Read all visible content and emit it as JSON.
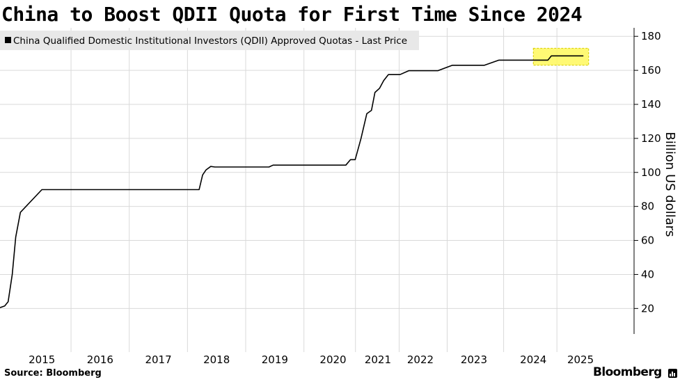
{
  "title": "China to Boost QDII Quota for First Time Since 2024",
  "source": "Source: Bloomberg",
  "brand": "Bloomberg",
  "colors": {
    "line": "#000000",
    "highlight_fill": "#fff85c",
    "highlight_border": "#d6cc00",
    "grid": "#d9d9d9",
    "legend_bg": "#e8e8e8"
  },
  "chart_data": {
    "type": "line",
    "legend": "China Qualified Domestic Institutional Investors (QDII) Approved Quotas - Last Price",
    "legend_position": "top-left",
    "ylabel": "Billion US dollars",
    "ylim": [
      5,
      185
    ],
    "yticks": [
      20,
      40,
      60,
      80,
      100,
      120,
      140,
      160,
      180
    ],
    "xlim": [
      2014.28,
      2025.17
    ],
    "xticks": [
      {
        "label": "2015",
        "x": 2015.0
      },
      {
        "label": "2016",
        "x": 2016.0
      },
      {
        "label": "2017",
        "x": 2017.0
      },
      {
        "label": "2018",
        "x": 2018.0
      },
      {
        "label": "2019",
        "x": 2019.0
      },
      {
        "label": "2020",
        "x": 2020.0
      },
      {
        "label": "2021",
        "x": 2020.77
      },
      {
        "label": "2022",
        "x": 2021.5
      },
      {
        "label": "2023",
        "x": 2022.42
      },
      {
        "label": "2024",
        "x": 2023.44
      },
      {
        "label": "2025",
        "x": 2024.25
      }
    ],
    "grid": true,
    "series": [
      {
        "name": "China Qualified Domestic Institutional Investors (QDII) Approved Quotas - Last Price",
        "x": [
          2014.28,
          2014.36,
          2014.42,
          2014.49,
          2014.55,
          2014.63,
          2015.0,
          2016.0,
          2017.0,
          2017.7,
          2017.76,
          2017.82,
          2017.9,
          2017.97,
          2018.05,
          2018.5,
          2018.9,
          2018.97,
          2019.5,
          2020.22,
          2020.3,
          2020.38,
          2020.48,
          2020.58,
          2020.66,
          2020.72,
          2020.8,
          2020.87,
          2020.95,
          2021.04,
          2021.15,
          2021.3,
          2021.48,
          2021.6,
          2021.8,
          2022.05,
          2022.3,
          2022.6,
          2022.85,
          2023.2,
          2023.6,
          2023.69,
          2023.75,
          2023.9,
          2024.2,
          2024.3
        ],
        "y": [
          20.5,
          21.5,
          24,
          40,
          62,
          76.5,
          89.9,
          89.9,
          89.9,
          89.9,
          98.5,
          101.5,
          103.5,
          103.2,
          103.2,
          103.2,
          103.2,
          104.3,
          104.3,
          104.3,
          107.5,
          107.5,
          120,
          134.5,
          136.5,
          147,
          149.5,
          154,
          157.5,
          157.5,
          157.5,
          159.8,
          159.8,
          159.8,
          159.8,
          163,
          163,
          163,
          166,
          166,
          166,
          166,
          168.5,
          168.5,
          168.5,
          168.5
        ]
      }
    ],
    "annotation": {
      "type": "highlight-box",
      "x": [
        2023.44,
        2024.39
      ],
      "y": [
        163,
        173
      ]
    }
  }
}
